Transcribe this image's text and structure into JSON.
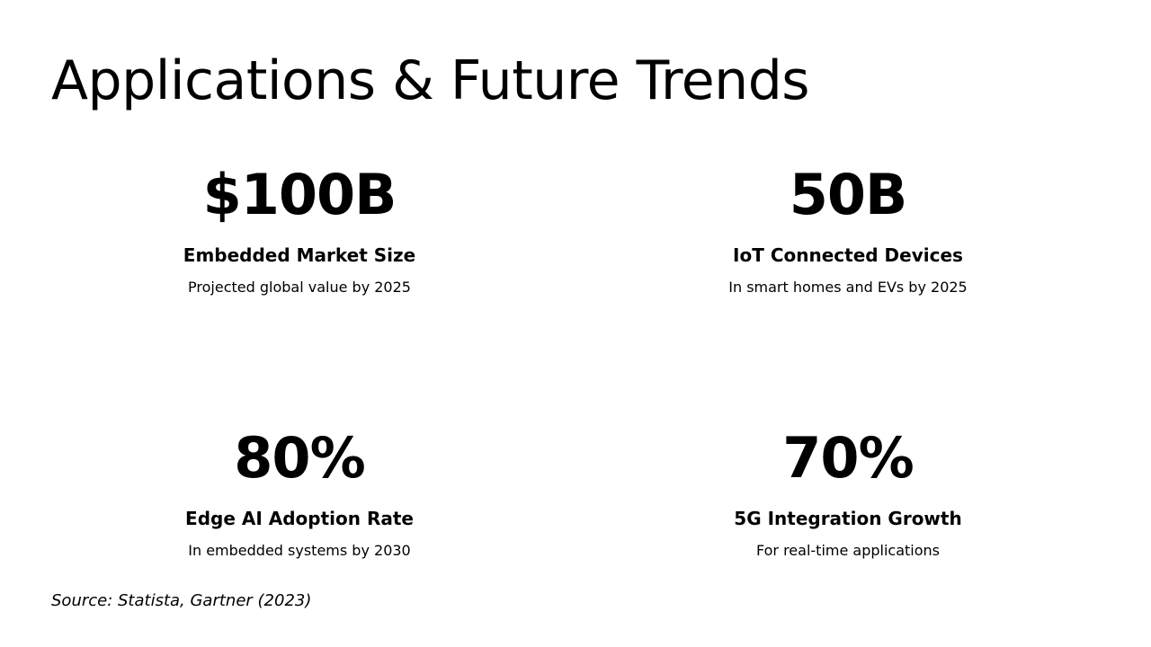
{
  "slide": {
    "title": "Applications & Future Trends",
    "stats": [
      {
        "value": "$100B",
        "label": "Embedded Market Size",
        "description": "Projected global value by 2025"
      },
      {
        "value": "50B",
        "label": "IoT Connected Devices",
        "description": "In smart homes and EVs by 2025"
      },
      {
        "value": "80%",
        "label": "Edge AI Adoption Rate",
        "description": "In embedded systems by 2030"
      },
      {
        "value": "70%",
        "label": "5G Integration Growth",
        "description": "For real-time applications"
      }
    ],
    "source": "Source: Statista, Gartner (2023)"
  }
}
